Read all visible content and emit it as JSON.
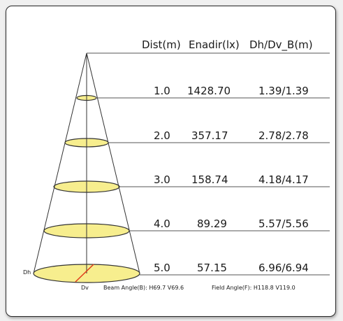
{
  "headers": {
    "dist": "Dist(m)",
    "enadir": "Enadir(lx)",
    "dh_dv": "Dh/Dv_B(m)"
  },
  "rows": [
    {
      "dist": "1.0",
      "enadir": "1428.70",
      "dh_dv": "1.39/1.39"
    },
    {
      "dist": "2.0",
      "enadir": "357.17",
      "dh_dv": "2.78/2.78"
    },
    {
      "dist": "3.0",
      "enadir": "158.74",
      "dh_dv": "4.18/4.17"
    },
    {
      "dist": "4.0",
      "enadir": "89.29",
      "dh_dv": "5.57/5.56"
    },
    {
      "dist": "5.0",
      "enadir": "57.15",
      "dh_dv": "6.96/6.94"
    }
  ],
  "labels": {
    "dh": "Dh",
    "dv": "Dv"
  },
  "footer": {
    "beam_angle": "Beam Angle(B): H69.7 V69.6",
    "field_angle": "Field Angle(F): H118.8 V119.0"
  },
  "colors": {
    "ellipse_fill": "#f7ee8e",
    "line": "#333333",
    "dv_line": "#e03a1a"
  }
}
